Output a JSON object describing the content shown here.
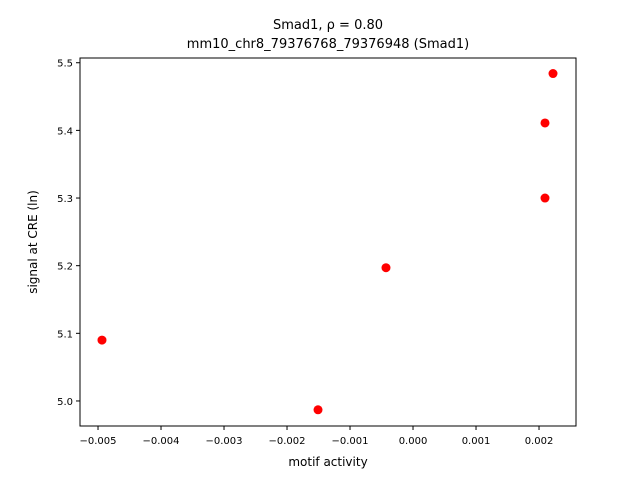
{
  "chart_data": {
    "type": "scatter",
    "title": "Smad1, ρ = 0.80",
    "subtitle": "mm10_chr8_79376768_79376948 (Smad1)",
    "x_label": "motif activity",
    "y_label": "signal at CRE (ln)",
    "color": "#ff0000",
    "x": [
      -0.004937,
      -0.001508,
      -0.000429,
      0.002095,
      0.002095,
      0.002222
    ],
    "values": [
      5.09,
      4.987,
      5.197,
      5.3,
      5.411,
      5.484
    ],
    "xlim": [
      -0.005286,
      0.002587
    ],
    "ylim": [
      4.963,
      5.507
    ],
    "xticks": [
      {
        "value": -0.005,
        "label": "−0.005"
      },
      {
        "value": -0.004,
        "label": "−0.004"
      },
      {
        "value": -0.003,
        "label": "−0.003"
      },
      {
        "value": -0.002,
        "label": "−0.002"
      },
      {
        "value": -0.001,
        "label": "−0.001"
      },
      {
        "value": 0,
        "label": "0.000"
      },
      0.001,
      0.002
    ],
    "yticks": [
      {
        "value": 5.0,
        "label": "5.0"
      },
      5.1,
      5.2,
      5.3,
      5.4,
      5.5
    ]
  }
}
